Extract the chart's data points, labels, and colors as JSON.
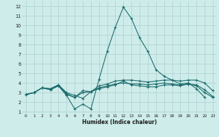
{
  "xlabel": "Humidex (Indice chaleur)",
  "bg_color": "#ceecea",
  "grid_color": "#b0d4d2",
  "line_color": "#1a6b6b",
  "xlim": [
    -0.5,
    23.5
  ],
  "ylim": [
    0.8,
    12.5
  ],
  "yticks": [
    1,
    2,
    3,
    4,
    5,
    6,
    7,
    8,
    9,
    10,
    11,
    12
  ],
  "xticks": [
    0,
    1,
    2,
    3,
    4,
    5,
    6,
    7,
    8,
    9,
    10,
    11,
    12,
    13,
    14,
    15,
    16,
    17,
    18,
    19,
    20,
    21,
    22,
    23
  ],
  "series": [
    [
      2.8,
      3.0,
      3.5,
      3.3,
      3.7,
      2.7,
      1.3,
      1.8,
      1.3,
      4.4,
      7.3,
      9.8,
      11.9,
      10.7,
      8.7,
      7.3,
      5.4,
      4.7,
      4.3,
      3.9,
      4.0,
      3.4,
      2.5,
      null
    ],
    [
      2.8,
      3.0,
      3.5,
      3.4,
      3.8,
      3.0,
      2.7,
      2.4,
      3.1,
      3.7,
      3.9,
      4.2,
      4.3,
      4.3,
      4.2,
      4.1,
      4.2,
      4.3,
      4.3,
      4.2,
      4.3,
      4.3,
      4.0,
      3.2
    ],
    [
      2.8,
      3.0,
      3.5,
      3.4,
      3.8,
      2.9,
      2.5,
      3.0,
      3.1,
      3.5,
      3.7,
      3.9,
      4.0,
      3.9,
      3.9,
      3.8,
      3.9,
      4.0,
      3.9,
      3.8,
      3.9,
      3.8,
      3.3,
      2.6
    ],
    [
      2.8,
      3.0,
      3.5,
      3.3,
      3.7,
      2.8,
      2.5,
      3.2,
      3.1,
      3.4,
      3.6,
      3.8,
      4.2,
      3.8,
      3.7,
      3.6,
      3.6,
      3.8,
      3.8,
      3.7,
      3.9,
      3.7,
      3.0,
      2.5
    ]
  ]
}
